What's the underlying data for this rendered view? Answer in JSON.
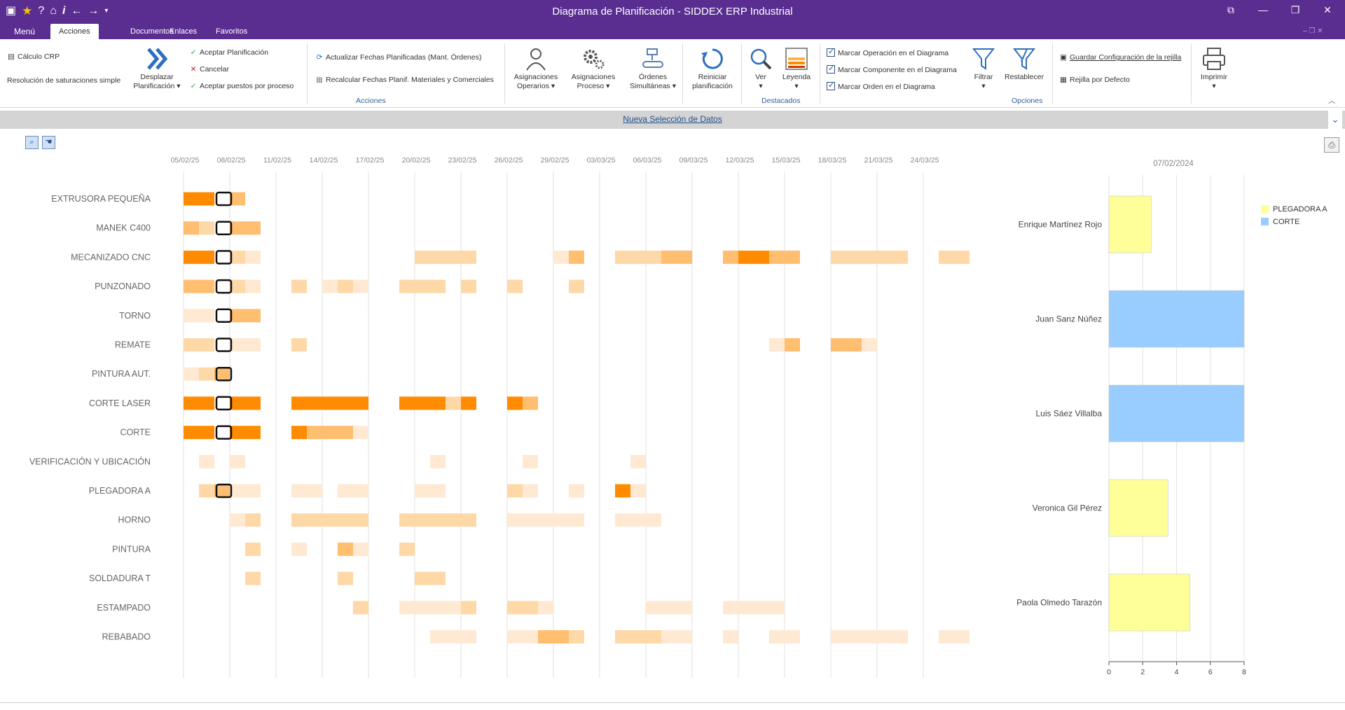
{
  "window": {
    "title": "Diagrama de  Planificación - SIDDEX ERP Industrial"
  },
  "tabs": [
    {
      "label": "Menú"
    },
    {
      "label": "Acciones"
    },
    {
      "label": "Documentos"
    },
    {
      "label": "Enlaces"
    },
    {
      "label": "Favoritos"
    }
  ],
  "ribbon": {
    "calculo_crp": "Cálculo CRP",
    "resolucion": "Resolución de saturaciones simple",
    "desplazar": "Desplazar Planificación",
    "aceptar_planificacion": "Aceptar Planificación",
    "cancelar": "Cancelar",
    "aceptar_puestos": "Aceptar puestos por proceso",
    "actualizar_fechas": "Actualizar Fechas Planificadas (Mant. Órdenes)",
    "recalcular_fechas": "Recalcular Fechas Planif. Materiales y Comerciales",
    "group_acciones": "Acciones",
    "asignaciones_operarios": "Asignaciones Operarios",
    "asignaciones_proceso": "Asignaciones Proceso",
    "ordenes_simultaneas": "Órdenes Simultáneas",
    "reiniciar": "Reiniciar planificación",
    "ver": "Ver",
    "leyenda": "Leyenda",
    "group_destacados": "Destacados",
    "marcar_operacion": "Marcar Operación en el Diagrama",
    "marcar_componente": "Marcar Componente en el Diagrama",
    "marcar_orden": "Marcar Orden en el Diagrama",
    "filtrar": "Filtrar",
    "restablecer": "Restablecer",
    "guardar_config": "Guardar Configuración de la rejilla",
    "rejilla_defecto": "Rejilla por Defecto",
    "group_opciones": "Opciones",
    "imprimir": "Imprimir"
  },
  "selection_bar": {
    "label": "Nueva Selección de Datos"
  },
  "gantt": {
    "dates": [
      "05/02/25",
      "08/02/25",
      "11/02/25",
      "14/02/25",
      "17/02/25",
      "20/02/25",
      "23/02/25",
      "26/02/25",
      "29/02/25",
      "03/03/25",
      "06/03/25",
      "09/03/25",
      "12/03/25",
      "15/03/25",
      "18/03/25",
      "21/03/25",
      "24/03/25"
    ],
    "colors": {
      "high": "#ff8c00",
      "mid": "#ffbe70",
      "low": "#ffd8a8",
      "vlow": "#ffe9d2"
    },
    "rows": [
      {
        "label": "EXTRUSORA PEQUEÑA",
        "cells": [
          [
            0,
            "high"
          ],
          [
            1,
            "high"
          ],
          [
            3,
            "mid"
          ]
        ]
      },
      {
        "label": "MANEK C400",
        "cells": [
          [
            0,
            "mid"
          ],
          [
            1,
            "low"
          ],
          [
            3,
            "mid"
          ],
          [
            4,
            "mid"
          ]
        ]
      },
      {
        "label": "MECANIZADO CNC",
        "cells": [
          [
            0,
            "high"
          ],
          [
            1,
            "high"
          ],
          [
            3,
            "low"
          ],
          [
            4,
            "vlow"
          ],
          [
            15,
            "low"
          ],
          [
            16,
            "low"
          ],
          [
            17,
            "low"
          ],
          [
            18,
            "low"
          ],
          [
            24,
            "vlow"
          ],
          [
            25,
            "mid"
          ],
          [
            28,
            "low"
          ],
          [
            29,
            "low"
          ],
          [
            30,
            "low"
          ],
          [
            31,
            "mid"
          ],
          [
            32,
            "mid"
          ],
          [
            35,
            "mid"
          ],
          [
            36,
            "high"
          ],
          [
            37,
            "high"
          ],
          [
            38,
            "mid"
          ],
          [
            39,
            "mid"
          ],
          [
            42,
            "low"
          ],
          [
            43,
            "low"
          ],
          [
            44,
            "low"
          ],
          [
            45,
            "low"
          ],
          [
            46,
            "low"
          ],
          [
            49,
            "low"
          ],
          [
            50,
            "low"
          ]
        ]
      },
      {
        "label": "PUNZONADO",
        "cells": [
          [
            0,
            "mid"
          ],
          [
            1,
            "mid"
          ],
          [
            3,
            "low"
          ],
          [
            4,
            "vlow"
          ],
          [
            7,
            "low"
          ],
          [
            9,
            "vlow"
          ],
          [
            10,
            "low"
          ],
          [
            11,
            "vlow"
          ],
          [
            14,
            "low"
          ],
          [
            15,
            "low"
          ],
          [
            16,
            "low"
          ],
          [
            18,
            "low"
          ],
          [
            21,
            "low"
          ],
          [
            25,
            "low"
          ]
        ]
      },
      {
        "label": "TORNO",
        "cells": [
          [
            0,
            "vlow"
          ],
          [
            1,
            "vlow"
          ],
          [
            3,
            "mid"
          ],
          [
            4,
            "mid"
          ]
        ]
      },
      {
        "label": "REMATE",
        "cells": [
          [
            0,
            "low"
          ],
          [
            1,
            "low"
          ],
          [
            3,
            "vlow"
          ],
          [
            4,
            "vlow"
          ],
          [
            7,
            "low"
          ],
          [
            38,
            "vlow"
          ],
          [
            39,
            "mid"
          ],
          [
            42,
            "mid"
          ],
          [
            43,
            "mid"
          ],
          [
            44,
            "vlow"
          ]
        ]
      },
      {
        "label": "PINTURA AUT.",
        "cells": [
          [
            0,
            "vlow"
          ],
          [
            1,
            "low"
          ],
          [
            2,
            "mid"
          ]
        ]
      },
      {
        "label": "CORTE LASER",
        "cells": [
          [
            0,
            "high"
          ],
          [
            1,
            "high"
          ],
          [
            3,
            "high"
          ],
          [
            4,
            "high"
          ],
          [
            7,
            "high"
          ],
          [
            8,
            "high"
          ],
          [
            9,
            "high"
          ],
          [
            10,
            "high"
          ],
          [
            11,
            "high"
          ],
          [
            14,
            "high"
          ],
          [
            15,
            "high"
          ],
          [
            16,
            "high"
          ],
          [
            17,
            "low"
          ],
          [
            18,
            "high"
          ],
          [
            21,
            "high"
          ],
          [
            22,
            "mid"
          ]
        ]
      },
      {
        "label": "CORTE",
        "cells": [
          [
            0,
            "high"
          ],
          [
            1,
            "high"
          ],
          [
            3,
            "high"
          ],
          [
            4,
            "high"
          ],
          [
            7,
            "high"
          ],
          [
            8,
            "mid"
          ],
          [
            9,
            "mid"
          ],
          [
            10,
            "mid"
          ],
          [
            11,
            "vlow"
          ]
        ]
      },
      {
        "label": "VERIFICACIÓN Y UBICACIÓN",
        "cells": [
          [
            1,
            "vlow"
          ],
          [
            3,
            "vlow"
          ],
          [
            16,
            "vlow"
          ],
          [
            22,
            "vlow"
          ],
          [
            29,
            "vlow"
          ]
        ]
      },
      {
        "label": "PLEGADORA  A",
        "cells": [
          [
            1,
            "low"
          ],
          [
            2,
            "mid"
          ],
          [
            3,
            "vlow"
          ],
          [
            4,
            "vlow"
          ],
          [
            7,
            "vlow"
          ],
          [
            8,
            "vlow"
          ],
          [
            10,
            "vlow"
          ],
          [
            11,
            "vlow"
          ],
          [
            15,
            "vlow"
          ],
          [
            16,
            "vlow"
          ],
          [
            21,
            "low"
          ],
          [
            22,
            "vlow"
          ],
          [
            25,
            "vlow"
          ],
          [
            28,
            "high"
          ],
          [
            29,
            "vlow"
          ]
        ]
      },
      {
        "label": "HORNO",
        "cells": [
          [
            3,
            "vlow"
          ],
          [
            4,
            "low"
          ],
          [
            7,
            "low"
          ],
          [
            8,
            "low"
          ],
          [
            9,
            "low"
          ],
          [
            10,
            "low"
          ],
          [
            11,
            "low"
          ],
          [
            14,
            "low"
          ],
          [
            15,
            "low"
          ],
          [
            16,
            "low"
          ],
          [
            17,
            "low"
          ],
          [
            18,
            "low"
          ],
          [
            21,
            "vlow"
          ],
          [
            22,
            "vlow"
          ],
          [
            23,
            "vlow"
          ],
          [
            24,
            "vlow"
          ],
          [
            25,
            "vlow"
          ],
          [
            28,
            "vlow"
          ],
          [
            29,
            "vlow"
          ],
          [
            30,
            "vlow"
          ]
        ]
      },
      {
        "label": "PINTURA",
        "cells": [
          [
            4,
            "low"
          ],
          [
            7,
            "vlow"
          ],
          [
            10,
            "mid"
          ],
          [
            11,
            "vlow"
          ],
          [
            14,
            "low"
          ]
        ]
      },
      {
        "label": "SOLDADURA T",
        "cells": [
          [
            4,
            "low"
          ],
          [
            10,
            "low"
          ],
          [
            15,
            "low"
          ],
          [
            16,
            "low"
          ]
        ]
      },
      {
        "label": "ESTAMPADO",
        "cells": [
          [
            11,
            "low"
          ],
          [
            14,
            "vlow"
          ],
          [
            15,
            "vlow"
          ],
          [
            16,
            "vlow"
          ],
          [
            17,
            "vlow"
          ],
          [
            18,
            "low"
          ],
          [
            21,
            "low"
          ],
          [
            22,
            "low"
          ],
          [
            23,
            "vlow"
          ],
          [
            30,
            "vlow"
          ],
          [
            31,
            "vlow"
          ],
          [
            32,
            "vlow"
          ],
          [
            35,
            "vlow"
          ],
          [
            36,
            "vlow"
          ],
          [
            37,
            "vlow"
          ],
          [
            38,
            "vlow"
          ]
        ]
      },
      {
        "label": "REBABADO",
        "cells": [
          [
            16,
            "vlow"
          ],
          [
            17,
            "vlow"
          ],
          [
            18,
            "vlow"
          ],
          [
            21,
            "vlow"
          ],
          [
            22,
            "vlow"
          ],
          [
            23,
            "mid"
          ],
          [
            24,
            "mid"
          ],
          [
            25,
            "low"
          ],
          [
            28,
            "low"
          ],
          [
            29,
            "low"
          ],
          [
            30,
            "low"
          ],
          [
            31,
            "vlow"
          ],
          [
            32,
            "vlow"
          ],
          [
            35,
            "vlow"
          ],
          [
            38,
            "vlow"
          ],
          [
            39,
            "vlow"
          ],
          [
            42,
            "vlow"
          ],
          [
            43,
            "vlow"
          ],
          [
            44,
            "vlow"
          ],
          [
            45,
            "vlow"
          ],
          [
            46,
            "vlow"
          ],
          [
            49,
            "vlow"
          ],
          [
            50,
            "vlow"
          ]
        ]
      }
    ],
    "selected_rows": [
      0,
      1,
      2,
      3,
      4,
      5,
      6,
      7,
      8,
      10
    ]
  },
  "chart_data": {
    "type": "bar",
    "orientation": "horizontal",
    "title": "07/02/2024",
    "categories": [
      "Enrique Martínez Rojo",
      "Juan Sanz Núñez",
      "Luis Sáez Villalba",
      "Veronica Gil Pérez",
      "Paola Olmedo Tarazón"
    ],
    "values": [
      2.5,
      8,
      8,
      3.5,
      4.8
    ],
    "series_per_bar": [
      "PLEGADORA  A",
      "CORTE",
      "CORTE",
      "PLEGADORA  A",
      "PLEGADORA  A"
    ],
    "xlim": [
      0,
      8
    ],
    "xticks": [
      "0",
      "2",
      "4",
      "6",
      "8"
    ],
    "legend": [
      {
        "name": "PLEGADORA  A",
        "color": "#ffff99"
      },
      {
        "name": "CORTE",
        "color": "#99ccff"
      }
    ],
    "legend_position": "right",
    "grid": true
  }
}
